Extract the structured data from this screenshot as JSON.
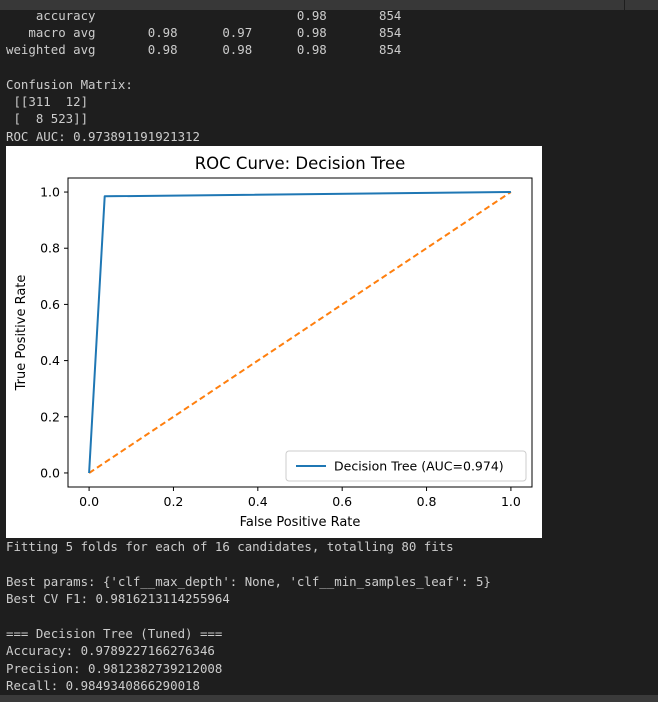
{
  "output_lines": [
    "    accuracy                           0.98       854",
    "   macro avg       0.98      0.97      0.98       854",
    "weighted avg       0.98      0.98      0.98       854",
    "",
    "Confusion Matrix:",
    " [[311  12]",
    " [  8 523]]",
    "ROC AUC: 0.973891191921312"
  ],
  "output_lines_after": [
    "Fitting 5 folds for each of 16 candidates, totalling 80 fits",
    "",
    "Best params: {'clf__max_depth': None, 'clf__min_samples_leaf': 5}",
    "Best CV F1: 0.9816213114255964",
    "",
    "=== Decision Tree (Tuned) ===",
    "Accuracy: 0.9789227166276346",
    "Precision: 0.9812382739212008",
    "Recall: 0.9849340866290018"
  ],
  "chart_data": {
    "type": "line",
    "title": "ROC Curve: Decision Tree",
    "xlabel": "False Positive Rate",
    "ylabel": "True Positive Rate",
    "xlim": [
      -0.05,
      1.05
    ],
    "ylim": [
      -0.05,
      1.05
    ],
    "xticks": [
      "0.0",
      "0.2",
      "0.4",
      "0.6",
      "0.8",
      "1.0"
    ],
    "yticks": [
      "0.0",
      "0.2",
      "0.4",
      "0.6",
      "0.8",
      "1.0"
    ],
    "grid": false,
    "legend_position": "lower-right",
    "series": [
      {
        "name": "Decision Tree (AUC=0.974)",
        "color": "#1f77b4",
        "style": "solid",
        "x": [
          0.0,
          0.037,
          1.0
        ],
        "y": [
          0.0,
          0.985,
          1.0
        ]
      },
      {
        "color": "#ff7f0e",
        "style": "dashed",
        "x": [
          0.0,
          1.0
        ],
        "y": [
          0.0,
          1.0
        ]
      }
    ]
  }
}
